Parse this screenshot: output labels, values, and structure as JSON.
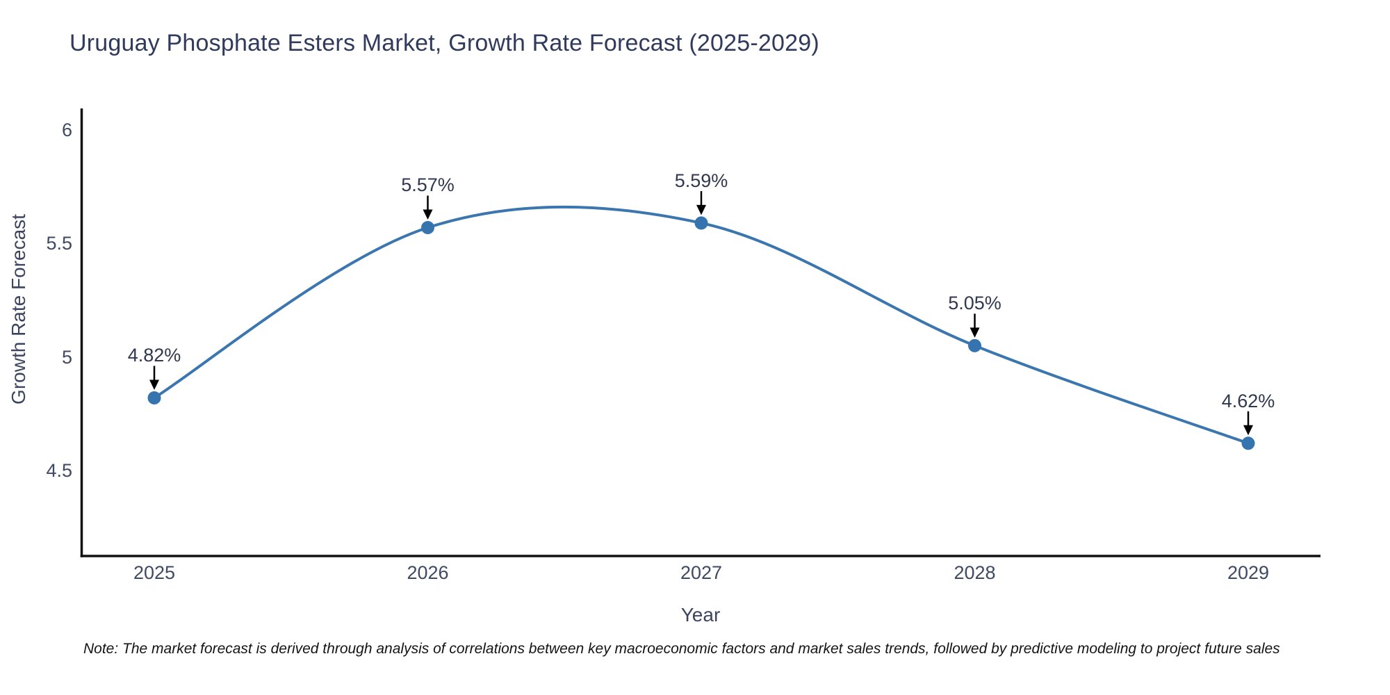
{
  "title": "Uruguay Phosphate Esters Market, Growth Rate Forecast (2025-2029)",
  "footnote": "Note: The market forecast is derived through analysis of correlations between key macroeconomic factors and market sales trends, followed by predictive modeling to project future sales",
  "colors": {
    "line": "#3b76af",
    "marker": "#3574ae",
    "spine": "#111111",
    "arrow": "#000000",
    "title_text": "#303a5c",
    "tick_text": "#3e4a63",
    "background": "#ffffff"
  },
  "chart_data": {
    "type": "line",
    "title": "Uruguay Phosphate Esters Market, Growth Rate Forecast (2025-2029)",
    "xlabel": "Year",
    "ylabel": "Growth Rate Forecast",
    "x": [
      2025,
      2026,
      2027,
      2028,
      2029
    ],
    "categories": [
      "2025",
      "2026",
      "2027",
      "2028",
      "2029"
    ],
    "series": [
      {
        "name": "Growth Rate Forecast",
        "values": [
          4.82,
          5.57,
          5.59,
          5.05,
          4.62
        ]
      }
    ],
    "point_labels": [
      "4.82%",
      "5.57%",
      "5.59%",
      "5.05%",
      "4.62%"
    ],
    "x_tick_labels": [
      "2025",
      "2026",
      "2027",
      "2028",
      "2029"
    ],
    "y_tick_values": [
      4.5,
      5,
      5.5,
      6
    ],
    "y_tick_labels": [
      "4.5",
      "5",
      "5.5",
      "6"
    ],
    "ylim": [
      4.12,
      6.09
    ],
    "grid": false,
    "legend": "none",
    "line_style": "smooth-spline",
    "marker": "circle",
    "annotations": "value labels with downward arrows above each point"
  }
}
